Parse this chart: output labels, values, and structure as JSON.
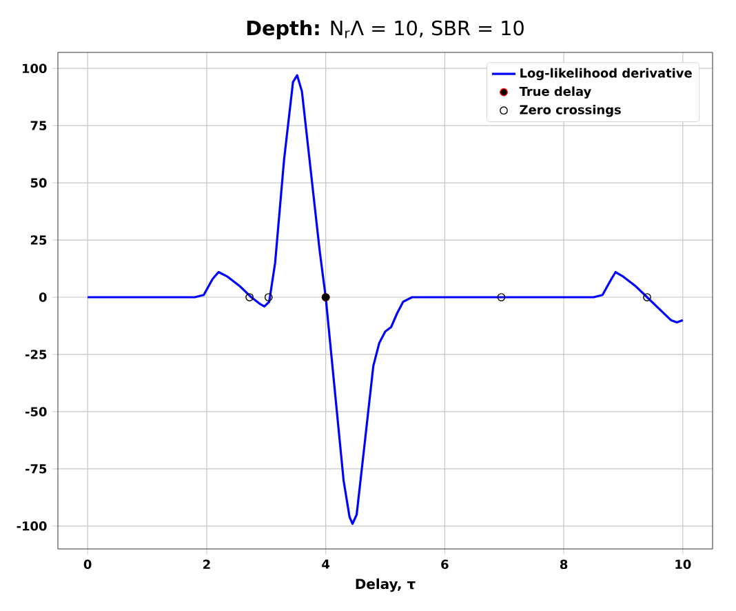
{
  "chart_data": {
    "type": "line",
    "title": "**Depth:** N$_{r}$Λ = 10, SBR = 10",
    "xlabel": "Delay, τ",
    "xlim": [
      -0.5,
      10.5
    ],
    "ylim": [
      -110,
      107
    ],
    "xticks": [
      0,
      2,
      4,
      6,
      8,
      10
    ],
    "yticks": [
      -100,
      -75,
      -50,
      -25,
      0,
      25,
      50,
      75,
      100
    ],
    "grid": true,
    "legend": "top right",
    "series": [
      {
        "name": "Log-likelihood derivative",
        "color": "#0000ff",
        "marker": "none",
        "x": [
          0,
          1,
          1.8,
          1.95,
          2.1,
          2.2,
          2.35,
          2.55,
          2.75,
          2.9,
          2.97,
          3.05,
          3.15,
          3.3,
          3.45,
          3.52,
          3.6,
          3.75,
          3.9,
          4.0,
          4.15,
          4.3,
          4.4,
          4.45,
          4.52,
          4.65,
          4.8,
          4.9,
          5.0,
          5.1,
          5.2,
          5.3,
          5.45,
          5.6,
          6,
          7,
          8,
          8.5,
          8.65,
          8.8,
          8.87,
          9.0,
          9.2,
          9.4,
          9.6,
          9.8,
          9.9,
          10
        ],
        "values": [
          0,
          0,
          0,
          1,
          8,
          11,
          9,
          5,
          0,
          -3,
          -4,
          -2,
          15,
          60,
          94,
          97,
          90,
          55,
          20,
          0,
          -40,
          -80,
          -96,
          -99,
          -95,
          -65,
          -30,
          -20,
          -15,
          -13,
          -7,
          -2,
          0,
          0,
          0,
          0,
          0,
          0,
          1,
          8,
          11,
          9,
          5,
          0,
          -5,
          -10,
          -11,
          -10
        ]
      },
      {
        "name": "True delay",
        "type": "scatter",
        "color": "#ff0000",
        "marker": "circle",
        "x": [
          4.0
        ],
        "values": [
          0
        ]
      },
      {
        "name": "Zero crossings",
        "type": "scatter",
        "color": "#000000",
        "marker": "circle",
        "x": [
          2.72,
          3.04,
          4.0,
          6.95,
          9.4
        ],
        "values": [
          0,
          0,
          0,
          0,
          0
        ]
      }
    ]
  }
}
